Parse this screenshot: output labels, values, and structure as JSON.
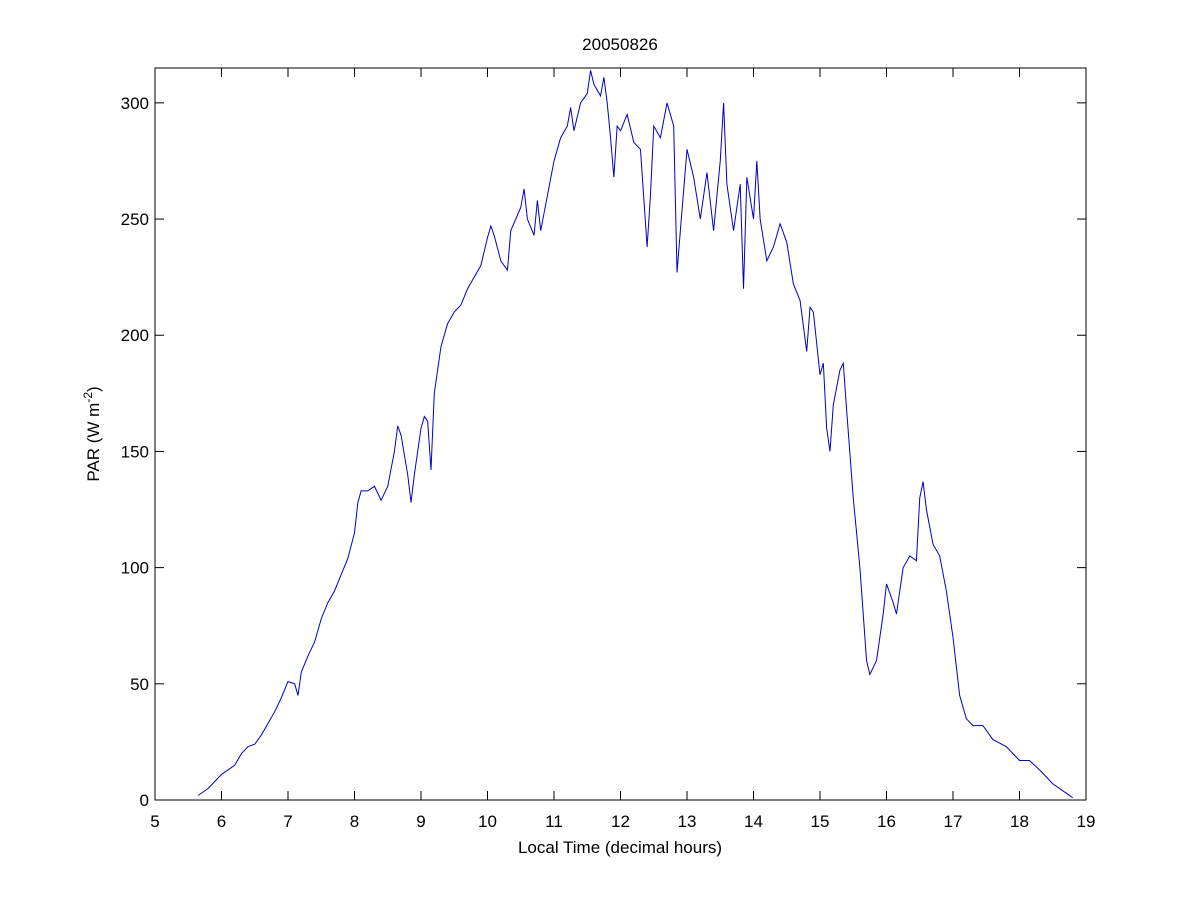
{
  "chart_data": {
    "type": "line",
    "title": "20050826",
    "x_label": "Local Time (decimal hours)",
    "y_label_parts": [
      "PAR (W m",
      "-2",
      ")"
    ],
    "xlim": [
      5,
      19
    ],
    "xticks": [
      5,
      6,
      7,
      8,
      9,
      10,
      11,
      12,
      13,
      14,
      15,
      16,
      17,
      18,
      19
    ],
    "ylim": [
      0,
      315
    ],
    "yticks": [
      0,
      50,
      100,
      150,
      200,
      250,
      300
    ],
    "grid": false,
    "series": [
      {
        "name": "PAR",
        "color": "#0000c8",
        "x": [
          5.65,
          5.8,
          6.0,
          6.1,
          6.2,
          6.3,
          6.4,
          6.5,
          6.6,
          6.7,
          6.8,
          6.9,
          7.0,
          7.1,
          7.15,
          7.2,
          7.3,
          7.4,
          7.5,
          7.6,
          7.7,
          7.8,
          7.9,
          8.0,
          8.05,
          8.1,
          8.2,
          8.3,
          8.4,
          8.5,
          8.6,
          8.65,
          8.7,
          8.8,
          8.85,
          8.9,
          9.0,
          9.05,
          9.1,
          9.15,
          9.2,
          9.3,
          9.4,
          9.5,
          9.6,
          9.7,
          9.8,
          9.9,
          10.0,
          10.05,
          10.1,
          10.2,
          10.3,
          10.35,
          10.5,
          10.55,
          10.6,
          10.7,
          10.75,
          10.8,
          10.9,
          11.0,
          11.1,
          11.2,
          11.25,
          11.3,
          11.4,
          11.5,
          11.55,
          11.6,
          11.7,
          11.75,
          11.8,
          11.85,
          11.9,
          11.95,
          12.0,
          12.1,
          12.2,
          12.3,
          12.4,
          12.45,
          12.5,
          12.6,
          12.7,
          12.8,
          12.85,
          12.9,
          13.0,
          13.1,
          13.2,
          13.3,
          13.4,
          13.5,
          13.55,
          13.6,
          13.7,
          13.8,
          13.85,
          13.9,
          14.0,
          14.05,
          14.1,
          14.2,
          14.3,
          14.4,
          14.5,
          14.6,
          14.7,
          14.8,
          14.85,
          14.9,
          15.0,
          15.05,
          15.1,
          15.15,
          15.2,
          15.3,
          15.35,
          15.4,
          15.5,
          15.6,
          15.7,
          15.75,
          15.85,
          15.95,
          16.0,
          16.1,
          16.15,
          16.25,
          16.35,
          16.45,
          16.5,
          16.55,
          16.6,
          16.7,
          16.8,
          16.9,
          17.0,
          17.1,
          17.2,
          17.3,
          17.45,
          17.6,
          17.8,
          17.9,
          18.0,
          18.15,
          18.3,
          18.5,
          18.7,
          18.8
        ],
        "values": [
          2,
          5,
          11,
          13,
          15,
          20,
          23,
          24,
          28,
          33,
          38,
          44,
          51,
          50,
          45,
          55,
          62,
          68,
          78,
          85,
          90,
          97,
          104,
          115,
          128,
          133,
          133,
          135,
          129,
          135,
          150,
          161,
          157,
          140,
          128,
          140,
          160,
          165,
          163,
          142,
          175,
          195,
          205,
          210,
          213,
          220,
          225,
          230,
          242,
          247,
          243,
          232,
          228,
          245,
          255,
          263,
          250,
          243,
          258,
          245,
          260,
          275,
          285,
          290,
          298,
          288,
          300,
          304,
          314,
          308,
          303,
          311,
          300,
          285,
          268,
          290,
          288,
          295,
          283,
          280,
          238,
          260,
          290,
          285,
          300,
          290,
          227,
          245,
          280,
          268,
          250,
          270,
          245,
          275,
          300,
          265,
          245,
          265,
          220,
          268,
          250,
          275,
          250,
          232,
          238,
          248,
          240,
          222,
          215,
          193,
          212,
          210,
          183,
          188,
          160,
          150,
          170,
          185,
          188,
          168,
          130,
          100,
          60,
          54,
          60,
          80,
          93,
          85,
          80,
          100,
          105,
          103,
          130,
          137,
          125,
          110,
          105,
          90,
          70,
          45,
          35,
          32,
          32,
          26,
          23,
          20,
          17,
          17,
          13,
          7,
          3,
          1
        ]
      }
    ]
  }
}
